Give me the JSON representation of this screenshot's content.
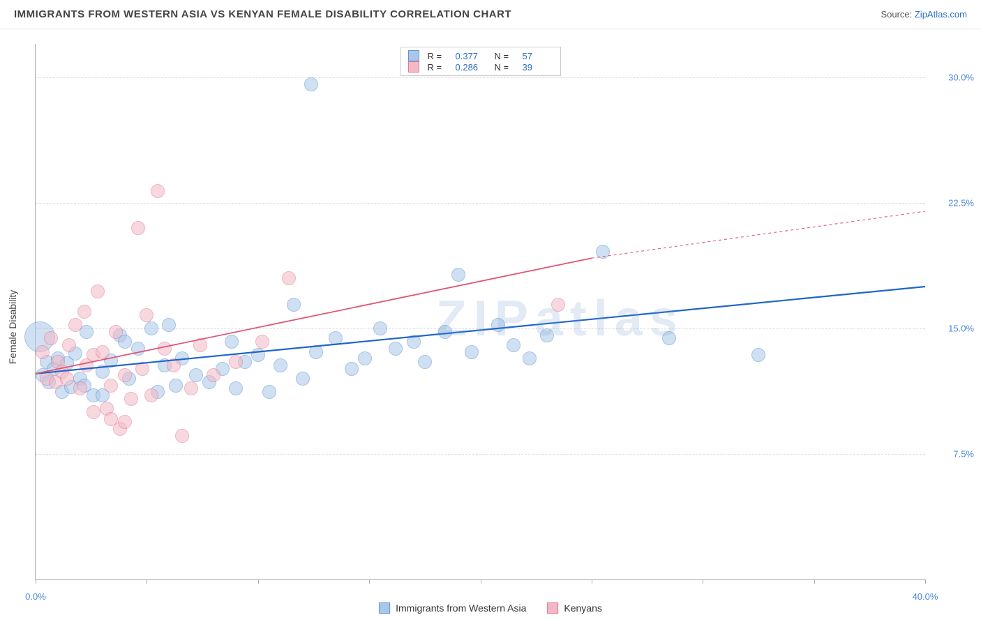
{
  "header": {
    "title": "IMMIGRANTS FROM WESTERN ASIA VS KENYAN FEMALE DISABILITY CORRELATION CHART",
    "source_prefix": "Source: ",
    "source_link": "ZipAtlas.com"
  },
  "chart": {
    "type": "scatter",
    "xlim": [
      0,
      40
    ],
    "ylim": [
      0,
      32
    ],
    "xticks": [
      0,
      5,
      10,
      15,
      20,
      25,
      30,
      35,
      40
    ],
    "xtick_labels": {
      "0": "0.0%",
      "40": "40.0%"
    },
    "yticks": [
      7.5,
      15.0,
      22.5,
      30.0
    ],
    "ytick_labels": [
      "7.5%",
      "15.0%",
      "22.5%",
      "30.0%"
    ],
    "ylabel": "Female Disability",
    "background": "#ffffff",
    "grid_color": "#dddddd",
    "watermark": "ZIPatlas",
    "point_radius": 10,
    "point_opacity": 0.55,
    "series": [
      {
        "name": "Immigrants from Western Asia",
        "color_fill": "#a9c7ea",
        "color_stroke": "#5e93d2",
        "R": "0.377",
        "N": "57",
        "trend": {
          "color": "#1f66c9",
          "width": 2.2,
          "x1": 0,
          "y1": 12.3,
          "x2": 40,
          "y2": 17.5,
          "dash": false
        },
        "points": [
          {
            "x": 0.2,
            "y": 14.5,
            "r": 22
          },
          {
            "x": 0.3,
            "y": 12.2
          },
          {
            "x": 0.5,
            "y": 13.0
          },
          {
            "x": 0.6,
            "y": 11.8
          },
          {
            "x": 0.8,
            "y": 12.6
          },
          {
            "x": 1.0,
            "y": 13.2
          },
          {
            "x": 1.2,
            "y": 11.2
          },
          {
            "x": 1.4,
            "y": 12.9
          },
          {
            "x": 1.6,
            "y": 11.5
          },
          {
            "x": 1.8,
            "y": 13.5
          },
          {
            "x": 2.0,
            "y": 12.0
          },
          {
            "x": 2.3,
            "y": 14.8
          },
          {
            "x": 2.6,
            "y": 11.0
          },
          {
            "x": 3.0,
            "y": 12.4
          },
          {
            "x": 3.4,
            "y": 13.1
          },
          {
            "x": 3.8,
            "y": 14.6
          },
          {
            "x": 4.2,
            "y": 12.0
          },
          {
            "x": 4.6,
            "y": 13.8
          },
          {
            "x": 5.2,
            "y": 15.0
          },
          {
            "x": 5.8,
            "y": 12.8
          },
          {
            "x": 6.3,
            "y": 11.6
          },
          {
            "x": 6.6,
            "y": 13.2
          },
          {
            "x": 7.2,
            "y": 12.2
          },
          {
            "x": 7.8,
            "y": 11.8
          },
          {
            "x": 8.4,
            "y": 12.6
          },
          {
            "x": 8.8,
            "y": 14.2
          },
          {
            "x": 9.4,
            "y": 13.0
          },
          {
            "x": 10.0,
            "y": 13.4
          },
          {
            "x": 10.5,
            "y": 11.2
          },
          {
            "x": 11.0,
            "y": 12.8
          },
          {
            "x": 11.6,
            "y": 16.4
          },
          {
            "x": 12.0,
            "y": 12.0
          },
          {
            "x": 12.4,
            "y": 29.6
          },
          {
            "x": 12.6,
            "y": 13.6
          },
          {
            "x": 13.5,
            "y": 14.4
          },
          {
            "x": 14.2,
            "y": 12.6
          },
          {
            "x": 14.8,
            "y": 13.2
          },
          {
            "x": 15.5,
            "y": 15.0
          },
          {
            "x": 16.2,
            "y": 13.8
          },
          {
            "x": 17.0,
            "y": 14.2
          },
          {
            "x": 17.5,
            "y": 13.0
          },
          {
            "x": 18.4,
            "y": 14.8
          },
          {
            "x": 19.0,
            "y": 18.2
          },
          {
            "x": 19.6,
            "y": 13.6
          },
          {
            "x": 20.8,
            "y": 15.2
          },
          {
            "x": 21.5,
            "y": 14.0
          },
          {
            "x": 22.2,
            "y": 13.2
          },
          {
            "x": 23.0,
            "y": 14.6
          },
          {
            "x": 25.5,
            "y": 19.6
          },
          {
            "x": 28.5,
            "y": 14.4
          },
          {
            "x": 32.5,
            "y": 13.4
          },
          {
            "x": 6.0,
            "y": 15.2
          },
          {
            "x": 9.0,
            "y": 11.4
          },
          {
            "x": 5.5,
            "y": 11.2
          },
          {
            "x": 3.0,
            "y": 11.0
          },
          {
            "x": 2.2,
            "y": 11.6
          },
          {
            "x": 4.0,
            "y": 14.2
          }
        ]
      },
      {
        "name": "Kenyans",
        "color_fill": "#f2b9c5",
        "color_stroke": "#e47893",
        "R": "0.286",
        "N": "39",
        "trend": {
          "color": "#e15577",
          "width": 1.8,
          "x1": 0,
          "y1": 12.3,
          "x2": 25,
          "y2": 19.2,
          "dash_after_x": 25,
          "x3": 40,
          "y3": 22.0
        },
        "points": [
          {
            "x": 0.3,
            "y": 13.6
          },
          {
            "x": 0.5,
            "y": 12.0
          },
          {
            "x": 0.7,
            "y": 14.4
          },
          {
            "x": 0.9,
            "y": 11.8
          },
          {
            "x": 1.0,
            "y": 13.0
          },
          {
            "x": 1.2,
            "y": 12.4
          },
          {
            "x": 1.5,
            "y": 14.0
          },
          {
            "x": 1.8,
            "y": 15.2
          },
          {
            "x": 2.0,
            "y": 11.4
          },
          {
            "x": 2.2,
            "y": 16.0
          },
          {
            "x": 2.3,
            "y": 12.8
          },
          {
            "x": 2.6,
            "y": 13.4
          },
          {
            "x": 2.8,
            "y": 17.2
          },
          {
            "x": 3.0,
            "y": 13.6
          },
          {
            "x": 3.2,
            "y": 10.2
          },
          {
            "x": 3.4,
            "y": 11.6
          },
          {
            "x": 3.6,
            "y": 14.8
          },
          {
            "x": 3.8,
            "y": 9.0
          },
          {
            "x": 4.0,
            "y": 12.2
          },
          {
            "x": 4.3,
            "y": 10.8
          },
          {
            "x": 4.6,
            "y": 21.0
          },
          {
            "x": 4.8,
            "y": 12.6
          },
          {
            "x": 5.0,
            "y": 15.8
          },
          {
            "x": 5.2,
            "y": 11.0
          },
          {
            "x": 5.5,
            "y": 23.2
          },
          {
            "x": 5.8,
            "y": 13.8
          },
          {
            "x": 6.2,
            "y": 12.8
          },
          {
            "x": 6.6,
            "y": 8.6
          },
          {
            "x": 7.0,
            "y": 11.4
          },
          {
            "x": 7.4,
            "y": 14.0
          },
          {
            "x": 8.0,
            "y": 12.2
          },
          {
            "x": 9.0,
            "y": 13.0
          },
          {
            "x": 10.2,
            "y": 14.2
          },
          {
            "x": 11.4,
            "y": 18.0
          },
          {
            "x": 23.5,
            "y": 16.4
          },
          {
            "x": 3.4,
            "y": 9.6
          },
          {
            "x": 4.0,
            "y": 9.4
          },
          {
            "x": 2.6,
            "y": 10.0
          },
          {
            "x": 1.4,
            "y": 12.0
          }
        ]
      }
    ]
  },
  "legend_bottom": [
    {
      "label": "Immigrants from Western Asia",
      "fill": "#a9c7ea",
      "stroke": "#5e93d2"
    },
    {
      "label": "Kenyans",
      "fill": "#f2b9c5",
      "stroke": "#e47893"
    }
  ]
}
